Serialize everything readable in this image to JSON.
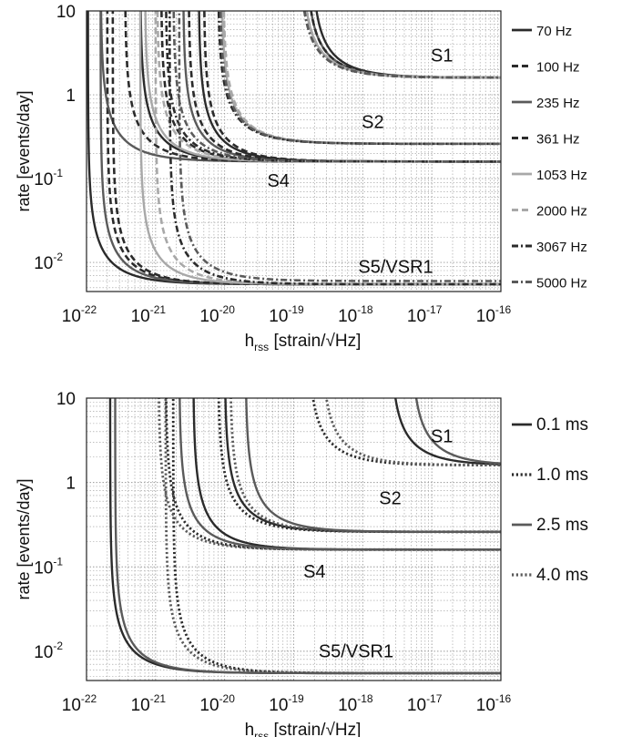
{
  "colors": {
    "dark": "#2b2b2b",
    "mid": "#5a5a5a",
    "light": "#a8a8a8",
    "grid": "#9a9a9a"
  },
  "chart_data": [
    {
      "type": "line",
      "xscale": "log",
      "yscale": "log",
      "xlabel": "h",
      "xlabel_sub": "rss",
      "xlabel_unit": " [strain/√Hz]",
      "ylabel": "rate [events/day]",
      "xlim": [
        1e-22,
        1e-16
      ],
      "ylim": [
        0.0045,
        10
      ],
      "grid": true,
      "legend_position": "right",
      "x_ticks": [
        {
          "base": "10",
          "exp": "-22"
        },
        {
          "base": "10",
          "exp": "-21"
        },
        {
          "base": "10",
          "exp": "-20"
        },
        {
          "base": "10",
          "exp": "-19"
        },
        {
          "base": "10",
          "exp": "-18"
        },
        {
          "base": "10",
          "exp": "-17"
        },
        {
          "base": "10",
          "exp": "-16"
        }
      ],
      "y_ticks": [
        {
          "value": 10,
          "base": "10",
          "exp": ""
        },
        {
          "value": 1,
          "base": "1",
          "exp": ""
        },
        {
          "value": 0.1,
          "base": "10",
          "exp": "-1"
        },
        {
          "value": 0.01,
          "base": "10",
          "exp": "-2"
        }
      ],
      "annotations": [
        {
          "text": "S1",
          "x": 1.4e-17,
          "y": 2.5
        },
        {
          "text": "S2",
          "x": 1.4e-18,
          "y": 0.4
        },
        {
          "text": "S4",
          "x": 6e-20,
          "y": 0.08
        },
        {
          "text": "S5/VSR1",
          "x": 3e-18,
          "y": 0.0075
        }
      ],
      "series": [
        {
          "name": "70 Hz",
          "style": "solid",
          "color": "dark",
          "runs": {
            "S1": [
              1.8e-19,
              1.6
            ],
            "S2": [
              4.2e-21,
              0.16
            ],
            "S4": [
              6e-22,
              0.16
            ],
            "S5": [
              1.05e-22,
              0.0055
            ]
          }
        },
        {
          "name": "100 Hz",
          "style": "dash",
          "color": "dark",
          "runs": {
            "S1": [
              1.3e-19,
              1.6
            ],
            "S2": [
              5e-21,
              0.16
            ],
            "S4": [
              1.2e-21,
              0.16
            ],
            "S5": [
              2e-22,
              0.0055
            ]
          }
        },
        {
          "name": "235 Hz",
          "style": "solid",
          "color": "mid",
          "runs": {
            "S1": [
              1.5e-19,
              1.6
            ],
            "S2": [
              2.5e-21,
              0.16
            ],
            "S4": [
              1.6e-22,
              0.16
            ],
            "S5": [
              1.6e-22,
              0.0055
            ]
          }
        },
        {
          "name": "361 Hz",
          "style": "dash",
          "color": "dark",
          "runs": {
            "S1": [
              1.5e-19,
              1.6
            ],
            "S2": [
              3e-21,
              0.16
            ],
            "S4": [
              3.6e-22,
              0.16
            ],
            "S5": [
              2.4e-22,
              0.0055
            ]
          }
        },
        {
          "name": "1053 Hz",
          "style": "solid",
          "color": "light",
          "runs": {
            "S1": [
              1.3e-19,
              1.6
            ],
            "S2": [
              9e-21,
              0.26
            ],
            "S4": [
              7e-22,
              0.16
            ],
            "S5": [
              6e-22,
              0.0055
            ]
          }
        },
        {
          "name": "2000 Hz",
          "style": "dash",
          "color": "light",
          "runs": {
            "S1": [
              1.3e-19,
              1.6
            ],
            "S2": [
              9.5e-21,
              0.26
            ],
            "S4": [
              1.05e-21,
              0.16
            ],
            "S5": [
              1e-21,
              0.0055
            ]
          }
        },
        {
          "name": "3067 Hz",
          "style": "dashdot",
          "color": "dark",
          "runs": {
            "S1": [
              1.2e-19,
              1.6
            ],
            "S2": [
              8e-21,
              0.26
            ],
            "S4": [
              1.4e-21,
              0.16
            ],
            "S5": [
              1.6e-21,
              0.0055
            ]
          }
        },
        {
          "name": "5000 Hz",
          "style": "dashdot",
          "color": "mid",
          "runs": {
            "S1": [
              1.2e-19,
              1.6
            ],
            "S2": [
              8.5e-21,
              0.26
            ],
            "S4": [
              1.8e-21,
              0.16
            ],
            "S5": [
              2.2e-21,
              0.006
            ]
          }
        }
      ]
    },
    {
      "type": "line",
      "xscale": "log",
      "yscale": "log",
      "xlabel": "h",
      "xlabel_sub": "rss",
      "xlabel_unit": " [strain/√Hz]",
      "ylabel": "rate [events/day]",
      "xlim": [
        1e-22,
        1e-16
      ],
      "ylim": [
        0.0045,
        10
      ],
      "grid": true,
      "legend_position": "right",
      "x_ticks": [
        {
          "base": "10",
          "exp": "-22"
        },
        {
          "base": "10",
          "exp": "-21"
        },
        {
          "base": "10",
          "exp": "-20"
        },
        {
          "base": "10",
          "exp": "-19"
        },
        {
          "base": "10",
          "exp": "-18"
        },
        {
          "base": "10",
          "exp": "-17"
        },
        {
          "base": "10",
          "exp": "-16"
        }
      ],
      "y_ticks": [
        {
          "value": 10,
          "base": "10",
          "exp": ""
        },
        {
          "value": 1,
          "base": "1",
          "exp": ""
        },
        {
          "value": 0.1,
          "base": "10",
          "exp": "-1"
        },
        {
          "value": 0.01,
          "base": "10",
          "exp": "-2"
        }
      ],
      "annotations": [
        {
          "text": "S1",
          "x": 1.4e-17,
          "y": 3.0
        },
        {
          "text": "S2",
          "x": 2.5e-18,
          "y": 0.55
        },
        {
          "text": "S4",
          "x": 2e-19,
          "y": 0.075
        },
        {
          "text": "S5/VSR1",
          "x": 8e-19,
          "y": 0.0085
        }
      ],
      "series": [
        {
          "name": "0.1 ms",
          "style": "solid",
          "color": "dark",
          "runs": {
            "S1": [
              2.5e-18,
              1.6
            ],
            "S2": [
              1e-20,
              0.26
            ],
            "S4": [
              3.5e-21,
              0.16
            ],
            "S5": [
              2.2e-22,
              0.0055
            ]
          }
        },
        {
          "name": "1.0 ms",
          "style": "dot",
          "color": "dark",
          "runs": {
            "S1": [
              1.6e-19,
              1.6
            ],
            "S2": [
              8e-21,
              0.26
            ],
            "S4": [
              1.4e-21,
              0.16
            ],
            "S5": [
              1.8e-21,
              0.0055
            ]
          }
        },
        {
          "name": "2.5 ms",
          "style": "solid",
          "color": "mid",
          "runs": {
            "S1": [
              5e-18,
              1.6
            ],
            "S2": [
              2e-20,
              0.26
            ],
            "S4": [
              2.2e-21,
              0.16
            ],
            "S5": [
              2.6e-22,
              0.0055
            ]
          }
        },
        {
          "name": "4.0 ms",
          "style": "dot",
          "color": "mid",
          "runs": {
            "S1": [
              2.5e-19,
              1.6
            ],
            "S2": [
              1.2e-20,
              0.26
            ],
            "S4": [
              1.1e-21,
              0.16
            ],
            "S5": [
              1.4e-21,
              0.0055
            ]
          }
        }
      ]
    }
  ]
}
